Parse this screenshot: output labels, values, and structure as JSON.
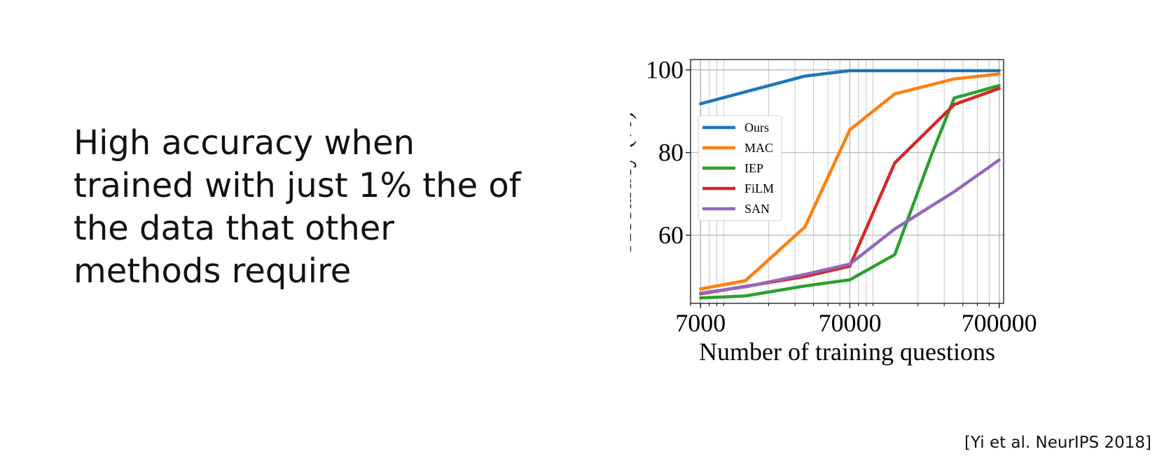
{
  "slide": {
    "heading": "High accuracy when\ntrained with just 1% the of\nthe data that other\nmethods require",
    "citation": "[Yi et al. NeurIPS 2018]"
  },
  "chart_data": {
    "type": "line",
    "xscale": "log",
    "xlabel": "Number of training questions",
    "ylabel": "Accuracy (%)",
    "xlim": [
      6000,
      750000
    ],
    "ylim": [
      43.5,
      102.5
    ],
    "xticks": [
      7000,
      70000,
      700000
    ],
    "xtick_labels": [
      "7000",
      "70000",
      "700000"
    ],
    "yticks": [
      60,
      80,
      100
    ],
    "ytick_labels": [
      "60",
      "80",
      "100"
    ],
    "grid": true,
    "legend_position": "center-left",
    "series": [
      {
        "name": "Ours",
        "color": "#1f77b4",
        "x": [
          7000,
          35000,
          70000,
          700000
        ],
        "y": [
          91.8,
          98.5,
          99.8,
          99.8
        ]
      },
      {
        "name": "MAC",
        "color": "#ff7f0e",
        "x": [
          7000,
          14000,
          35000,
          70000,
          140000,
          350000,
          700000
        ],
        "y": [
          47.0,
          49.0,
          62.0,
          85.5,
          94.2,
          97.8,
          99.0
        ]
      },
      {
        "name": "IEP",
        "color": "#2ca02c",
        "x": [
          7000,
          14000,
          35000,
          70000,
          140000,
          250000,
          350000,
          700000
        ],
        "y": [
          44.8,
          45.3,
          47.7,
          49.2,
          55.3,
          80.0,
          93.2,
          96.2
        ]
      },
      {
        "name": "FiLM",
        "color": "#d62728",
        "x": [
          7000,
          35000,
          70000,
          140000,
          350000,
          700000
        ],
        "y": [
          45.8,
          50.0,
          52.5,
          77.5,
          91.6,
          95.5
        ]
      },
      {
        "name": "SAN",
        "color": "#9467bd",
        "x": [
          7000,
          14000,
          35000,
          70000,
          140000,
          350000,
          700000
        ],
        "y": [
          46.0,
          47.5,
          50.5,
          53.0,
          61.5,
          70.5,
          78.2
        ]
      }
    ]
  }
}
